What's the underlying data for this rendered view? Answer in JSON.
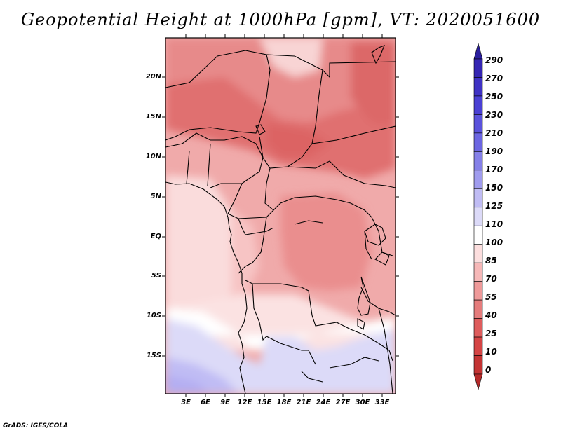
{
  "title": "Geopotential Height at 1000hPa [gpm], VT: 2020051600",
  "footer": "GrADS: IGES/COLA",
  "map": {
    "variable": "Geopotential Height",
    "level": "1000hPa",
    "units": "gpm",
    "valid_time": "2020051600",
    "lat_labels": [
      "20N",
      "15N",
      "10N",
      "5N",
      "EQ",
      "5S",
      "10S",
      "15S"
    ],
    "lon_labels": [
      "3E",
      "6E",
      "9E",
      "12E",
      "15E",
      "18E",
      "21E",
      "24E",
      "27E",
      "30E",
      "33E"
    ]
  },
  "colorbar": {
    "levels": [
      "290",
      "270",
      "250",
      "230",
      "210",
      "190",
      "170",
      "150",
      "125",
      "110",
      "100",
      "85",
      "70",
      "55",
      "40",
      "25",
      "10",
      "0"
    ],
    "colors": [
      "#2b1f9e",
      "#3526b3",
      "#3f32c4",
      "#4a40d4",
      "#5a52dc",
      "#6c66e2",
      "#8580e8",
      "#a09cee",
      "#c0bcf4",
      "#dcdaf8",
      "#ffffff",
      "#fcdede",
      "#f6b8b8",
      "#ef9a9a",
      "#e57c7c",
      "#de5c5c",
      "#d54545",
      "#c43434",
      "#b52a2a"
    ]
  }
}
